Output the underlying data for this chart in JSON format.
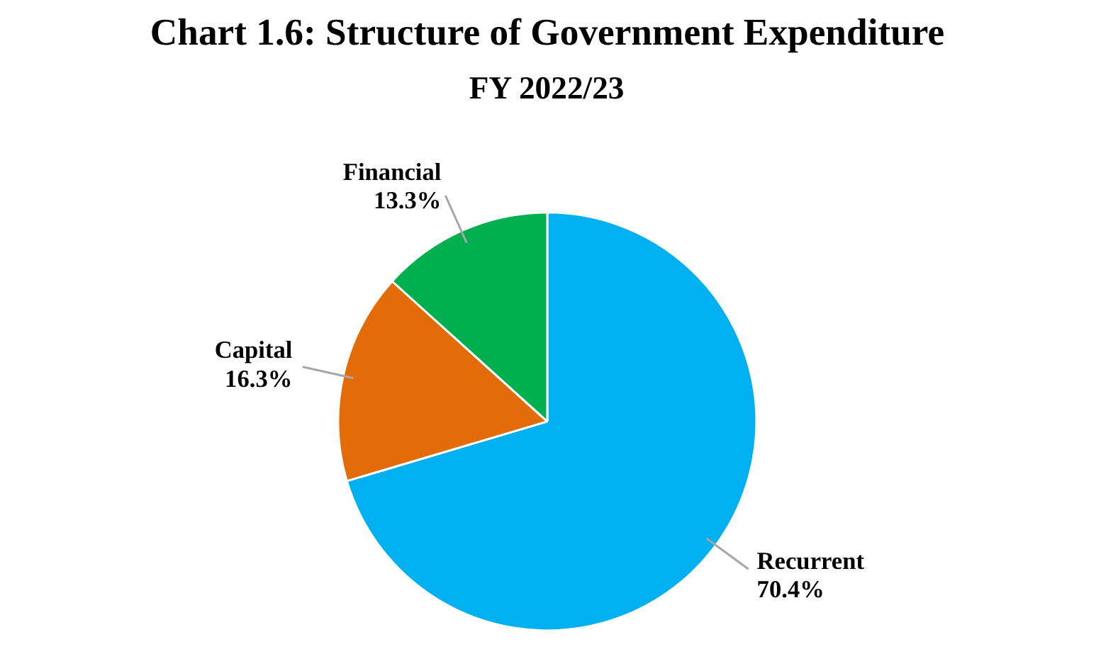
{
  "chart_data": {
    "type": "pie",
    "title": "Chart 1.6: Structure of Government Expenditure",
    "subtitle": "FY 2022/23",
    "categories": [
      "Recurrent",
      "Capital",
      "Financial"
    ],
    "values": [
      70.4,
      16.3,
      13.3
    ],
    "colors": [
      "#00b0f0",
      "#e36c09",
      "#00b050"
    ],
    "value_labels": [
      "70.4%",
      "16.3%",
      "13.3%"
    ]
  }
}
